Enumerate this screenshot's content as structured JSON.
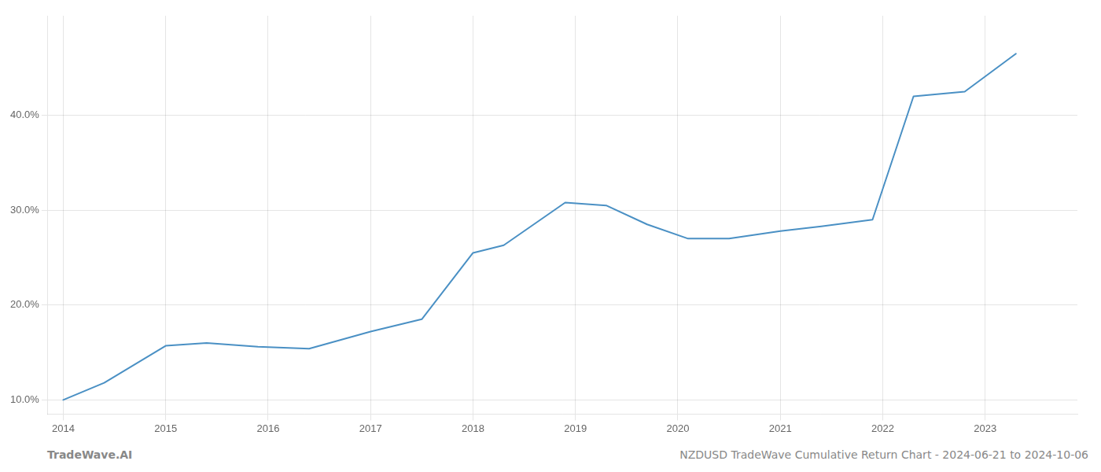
{
  "chart_data": {
    "type": "line",
    "x": [
      2014.0,
      2014.4,
      2015.0,
      2015.4,
      2015.9,
      2016.4,
      2017.0,
      2017.5,
      2018.0,
      2018.3,
      2018.9,
      2019.3,
      2019.7,
      2020.1,
      2020.5,
      2021.0,
      2021.4,
      2021.9,
      2022.3,
      2022.8,
      2023.3
    ],
    "values": [
      10.0,
      11.8,
      15.7,
      16.0,
      15.6,
      15.4,
      17.2,
      18.5,
      25.5,
      26.3,
      30.8,
      30.5,
      28.5,
      27.0,
      27.0,
      27.8,
      28.3,
      29.0,
      42.0,
      42.5,
      46.5
    ],
    "color": "#4a90c4",
    "xlim": [
      2013.85,
      2023.9
    ],
    "xticks": [
      2014,
      2015,
      2016,
      2017,
      2018,
      2019,
      2020,
      2021,
      2022,
      2023
    ],
    "ylim": [
      8.5,
      50.5
    ],
    "yticks": [
      {
        "value": 10.0,
        "label": "10.0%"
      },
      {
        "value": 20.0,
        "label": "20.0%"
      },
      {
        "value": 30.0,
        "label": "30.0%"
      },
      {
        "value": 40.0,
        "label": "40.0%"
      }
    ],
    "grid": true,
    "annotations": [
      "TradeWave.AI",
      "NZDUSD TradeWave Cumulative Return Chart - 2024-06-21 to 2024-10-06"
    ]
  }
}
